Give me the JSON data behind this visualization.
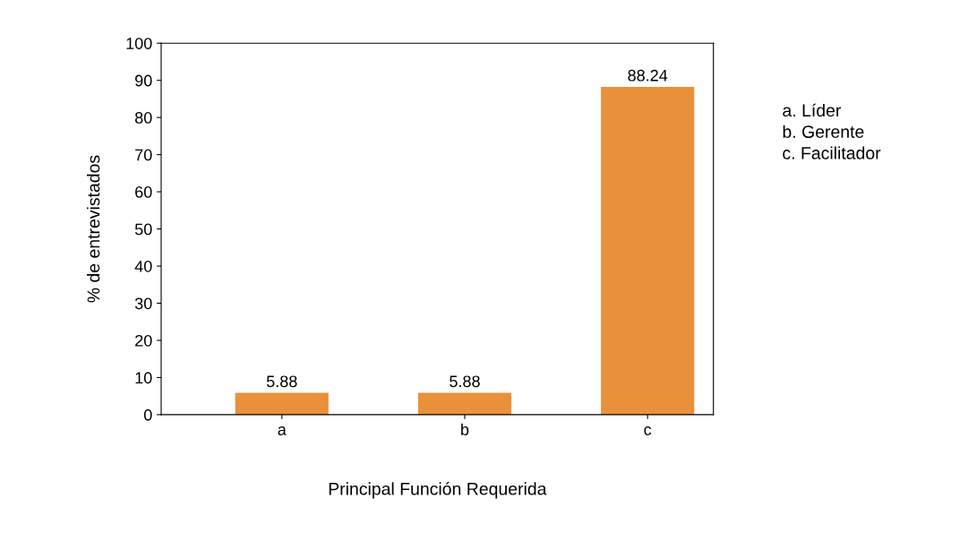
{
  "chart_data": {
    "type": "bar",
    "xlabel": "Principal Función Requerida",
    "ylabel": "% de entrevistados",
    "categories": [
      "a",
      "b",
      "c"
    ],
    "values": [
      5.88,
      5.88,
      88.24
    ],
    "color": "#e8913a",
    "ylim": [
      0,
      100
    ],
    "yticks": [
      0,
      10,
      20,
      30,
      40,
      50,
      60,
      70,
      80,
      90,
      100
    ],
    "data_labels": true,
    "grid": false,
    "annotations": [
      "a. Líder",
      "b. Gerente",
      "c. Facilitador"
    ]
  }
}
